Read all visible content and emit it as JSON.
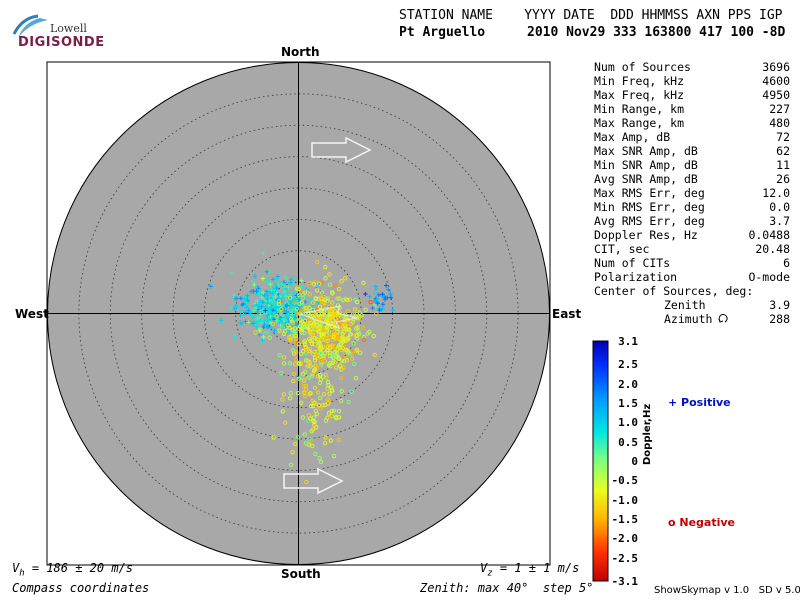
{
  "logo": {
    "line1": "Lowell",
    "line2": "DIGISONDE"
  },
  "header": {
    "row1": "STATION NAME    YYYY DATE  DDD HHMMSS AXN PPS IGP",
    "row2_station": "Pt Arguello",
    "row2_data": "2010 Nov29 333 163800 417 100 -8D"
  },
  "directions": {
    "north": "North",
    "south": "South",
    "east": "East",
    "west": "West"
  },
  "stats": [
    {
      "label": "Num of Sources",
      "value": "3696"
    },
    {
      "label": "Min Freq, kHz",
      "value": "4600"
    },
    {
      "label": "Max Freq, kHz",
      "value": "4950"
    },
    {
      "label": "Min Range, km",
      "value": "227"
    },
    {
      "label": "Max Range, km",
      "value": "480"
    },
    {
      "label": "Max Amp, dB",
      "value": "72"
    },
    {
      "label": "Max SNR Amp, dB",
      "value": "62"
    },
    {
      "label": "Min SNR Amp, dB",
      "value": "11"
    },
    {
      "label": "Avg SNR Amp, dB",
      "value": "26"
    },
    {
      "label": "Max RMS Err, deg",
      "value": "12.0"
    },
    {
      "label": "Min RMS Err, deg",
      "value": "0.0"
    },
    {
      "label": "Avg RMS Err, deg",
      "value": "3.7"
    },
    {
      "label": "Doppler Res, Hz",
      "value": "0.0488"
    },
    {
      "label": "CIT, sec",
      "value": "20.48"
    },
    {
      "label": "Num of CITs",
      "value": "6"
    },
    {
      "label": "Polarization",
      "value": "O-mode"
    }
  ],
  "center": {
    "title": "Center of Sources, deg:",
    "zenith_label": "Zenith",
    "zenith_value": "3.9",
    "azimuth_label": "Azimuth",
    "azimuth_value": "288"
  },
  "colorbar": {
    "label": "Doppler,Hz",
    "ticks": [
      "3.1",
      "2.5",
      "2.0",
      "1.5",
      "1.0",
      "0.5",
      "0",
      "-0.5",
      "-1.0",
      "-1.5",
      "-2.0",
      "-2.5",
      "-3.1"
    ],
    "positive": "+ Positive",
    "negative": "o Negative"
  },
  "footer": {
    "vh_prefix": "V",
    "vh_sub": "h",
    "vh_value": " = 186 ± 20 m/s",
    "vz_prefix": "V",
    "vz_sub": "z",
    "vz_value": " = 1 ± 1 m/s",
    "coords": "Compass coordinates",
    "zenith_info": "Zenith: max 40°  step 5°",
    "version": "ShowSkymap v 1.0   SD v 5.0"
  },
  "chart_data": {
    "type": "scatter",
    "projection": "polar sky map, compass coordinates",
    "zenith_max_deg": 40,
    "zenith_step_deg": 5,
    "color_variable": "Doppler, Hz",
    "color_range": [
      -3.1,
      3.1
    ],
    "markers": {
      "positive_doppler": "+",
      "negative_doppler": "o"
    },
    "clusters": [
      {
        "name": "main positive cluster",
        "zenith_deg": 4,
        "azimuth_deg": 285,
        "doppler_hz": 0.8,
        "sign": "positive"
      },
      {
        "name": "main negative cluster",
        "zenith_deg": 5,
        "azimuth_deg": 120,
        "doppler_hz": -0.9,
        "sign": "negative"
      },
      {
        "name": "southern negative tail",
        "zenith_deg": 14,
        "azimuth_deg": 170,
        "doppler_hz": -0.7,
        "sign": "negative"
      },
      {
        "name": "eastern positive patch",
        "zenith_deg": 13,
        "azimuth_deg": 80,
        "doppler_hz": 1.3,
        "sign": "positive"
      }
    ],
    "velocity_arrows": [
      {
        "position": "north-east",
        "direction": "east"
      },
      {
        "position": "south-east",
        "direction": "east"
      }
    ]
  }
}
